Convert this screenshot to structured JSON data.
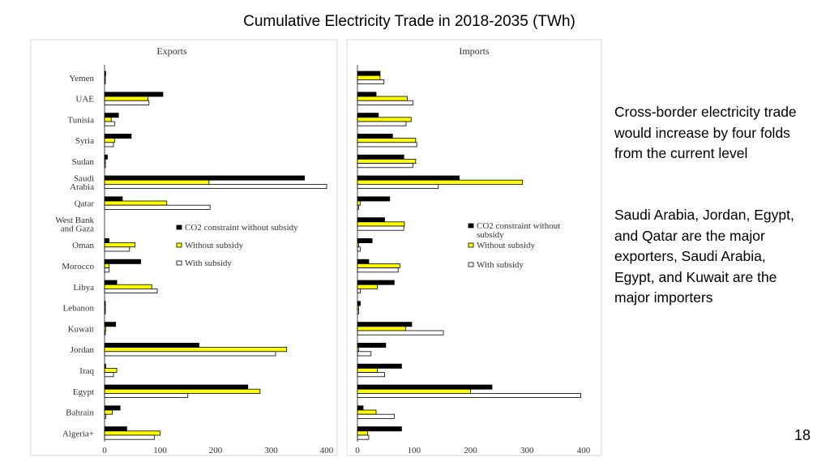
{
  "slide": {
    "title": "Cumulative Electricity Trade in 2018-2035 (TWh)",
    "note1": "Cross-border electricity trade would increase by four folds from the current level",
    "note2": "Saudi Arabia, Jordan, Egypt, and Qatar are the major exporters, Saudi Arabia, Egypt, and Kuwait are the major importers",
    "page_number": "18"
  },
  "chart_data": [
    {
      "type": "bar",
      "orientation": "horizontal",
      "title": "Exports",
      "xlim": [
        0,
        400
      ],
      "xticks": [
        "0",
        "100",
        "200",
        "300",
        "400"
      ],
      "categories": [
        "Yemen",
        "UAE",
        "Tunisia",
        "Syria",
        "Sudan",
        "Saudi Arabia",
        "Qatar",
        "West Bank and Gaza",
        "Oman",
        "Morocco",
        "Libya",
        "Lebanon",
        "Kuwait",
        "Jordan",
        "Iraq",
        "Egypt",
        "Bahrain",
        "Algeria+"
      ],
      "series": [
        {
          "name": "CO2 constraint without subsidy",
          "color": "#000000",
          "values": [
            2,
            105,
            25,
            48,
            5,
            360,
            32,
            0,
            8,
            65,
            22,
            1,
            20,
            170,
            2,
            258,
            28,
            40
          ]
        },
        {
          "name": "Without subsidy",
          "color": "#ffff00",
          "values": [
            1,
            78,
            12,
            18,
            1,
            188,
            112,
            0,
            55,
            8,
            85,
            1,
            2,
            328,
            22,
            280,
            14,
            100
          ]
        },
        {
          "name": "With subsidy",
          "color": "#ffffff",
          "values": [
            1,
            80,
            18,
            16,
            1,
            400,
            190,
            0,
            45,
            8,
            95,
            1,
            1,
            308,
            16,
            150,
            2,
            90
          ]
        }
      ],
      "legend_position": "middle-right"
    },
    {
      "type": "bar",
      "orientation": "horizontal",
      "title": "Imports",
      "xlim": [
        0,
        400
      ],
      "xticks": [
        "0",
        "100",
        "200",
        "300",
        "400"
      ],
      "categories": [
        "Yemen",
        "UAE",
        "Tunisia",
        "Syria",
        "Sudan",
        "Saudi Arabia",
        "Qatar",
        "West Bank and Gaza",
        "Oman",
        "Morocco",
        "Libya",
        "Lebanon",
        "Kuwait",
        "Jordan",
        "Iraq",
        "Egypt",
        "Bahrain",
        "Algeria+"
      ],
      "series": [
        {
          "name": "CO2 constraint without subsidy",
          "color": "#000000",
          "values": [
            40,
            33,
            37,
            62,
            82,
            180,
            57,
            48,
            26,
            20,
            65,
            5,
            96,
            50,
            78,
            238,
            10,
            78
          ]
        },
        {
          "name": "Without subsidy",
          "color": "#ffff00",
          "values": [
            40,
            88,
            95,
            103,
            103,
            292,
            5,
            83,
            2,
            75,
            35,
            2,
            85,
            2,
            35,
            200,
            33,
            18
          ]
        },
        {
          "name": "With subsidy",
          "color": "#ffffff",
          "values": [
            47,
            98,
            86,
            105,
            98,
            143,
            2,
            82,
            5,
            72,
            5,
            2,
            152,
            24,
            48,
            395,
            65,
            20
          ]
        }
      ],
      "legend_position": "middle-right"
    }
  ]
}
